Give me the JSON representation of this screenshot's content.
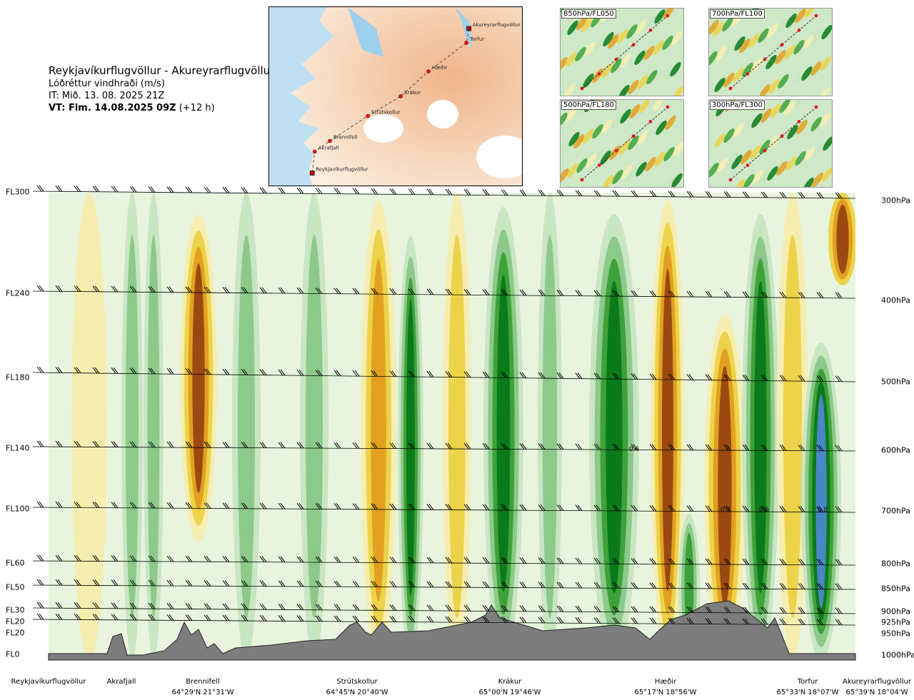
{
  "header": {
    "title": "Reykjavíkurflugvöllur - Akureyrarflugvöllur",
    "subtitle": "Lóðréttur vindhraði (m/s)",
    "issue_time": "IT: Mið. 13. 08. 2025 21Z",
    "valid_time_bold": "VT: Fim. 14.08.2025 09Z",
    "valid_time_suffix": " (+12 h)"
  },
  "route_map": {
    "points": [
      {
        "name": "Akureyrarflugvöllur",
        "x": 0.79,
        "y": 0.12
      },
      {
        "name": "Torfur",
        "x": 0.78,
        "y": 0.2
      },
      {
        "name": "Hæðir",
        "x": 0.63,
        "y": 0.36
      },
      {
        "name": "Krákur",
        "x": 0.52,
        "y": 0.5
      },
      {
        "name": "Strútskollur",
        "x": 0.39,
        "y": 0.61
      },
      {
        "name": "Brennifell",
        "x": 0.24,
        "y": 0.75
      },
      {
        "name": "Akrafjall",
        "x": 0.18,
        "y": 0.81
      },
      {
        "name": "Reykjavíkurflugvöllur",
        "x": 0.17,
        "y": 0.93
      }
    ]
  },
  "mini_maps": [
    {
      "label": "850hPa/FL050"
    },
    {
      "label": "700hPa/FL100"
    },
    {
      "label": "500hPa/FL180"
    },
    {
      "label": "300hPa/FL300"
    }
  ],
  "flight_levels": [
    {
      "label": "FL300",
      "hpa": "300hPa"
    },
    {
      "label": "FL240",
      "hpa": "400hPa"
    },
    {
      "label": "FL180",
      "hpa": "500hPa"
    },
    {
      "label": "FL140",
      "hpa": "600hPa"
    },
    {
      "label": "FL100",
      "hpa": "700hPa"
    },
    {
      "label": "FL60",
      "hpa": "800hPa"
    },
    {
      "label": "FL50",
      "hpa": "850hPa"
    },
    {
      "label": "FL30",
      "hpa": "900hPa"
    },
    {
      "label": "FL20",
      "hpa": "925hPa"
    },
    {
      "label": "FL20",
      "hpa": "950hPa"
    },
    {
      "label": "FL0",
      "hpa": "1000hPa"
    }
  ],
  "locations": [
    {
      "name": "Reykjavíkurflugvöllur",
      "coord": ""
    },
    {
      "name": "Akrafjall",
      "coord": ""
    },
    {
      "name": "Brennifell",
      "coord": "64°29'N 21°31'W"
    },
    {
      "name": "Strútskollur",
      "coord": "64°45'N 20°40'W"
    },
    {
      "name": "Krákur",
      "coord": "65°00'N 19°46'W"
    },
    {
      "name": "Hæðir",
      "coord": "65°17'N 18°56'W"
    },
    {
      "name": "Torfur",
      "coord": "65°33'N 18°07'W"
    },
    {
      "name": "Akureyrarflugvöllur",
      "coord": "65°39'N 18°04'W"
    }
  ],
  "contour_labels": [
    "0.6",
    "0.7",
    "0.6",
    "0.8"
  ],
  "colors": {
    "deep_green": "#0a7a1a",
    "green": "#3ea23a",
    "mid_green": "#8cc98a",
    "light_green": "#c9e6c2",
    "pale": "#e9f4df",
    "pale_yellow": "#f6eeb0",
    "yellow": "#ecd34a",
    "orange": "#e3a020",
    "brown": "#9a4a10",
    "blue": "#4a86c4",
    "terrain": "#7d7d7d"
  }
}
